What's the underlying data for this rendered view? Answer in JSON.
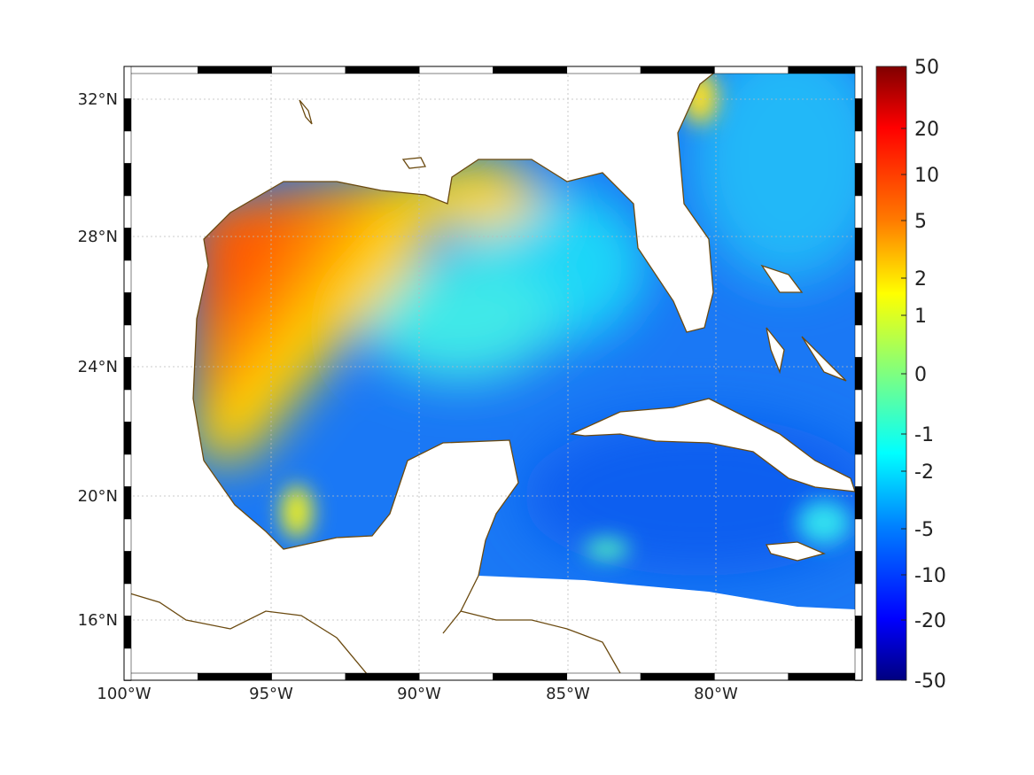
{
  "map": {
    "lat_ticks": [
      "32°N",
      "28°N",
      "24°N",
      "20°N",
      "16°N"
    ],
    "lon_ticks": [
      "100°W",
      "95°W",
      "90°W",
      "85°W",
      "80°W"
    ],
    "coastline_color": "#6b4a10",
    "land_color": "#ffffff"
  },
  "colorbar": {
    "colormap": "jet",
    "ticks": [
      "50",
      "20",
      "10",
      "5",
      "2",
      "1",
      "0",
      "-1",
      "-2",
      "-5",
      "-10",
      "-20",
      "-50"
    ],
    "range": [
      -50,
      50
    ]
  }
}
